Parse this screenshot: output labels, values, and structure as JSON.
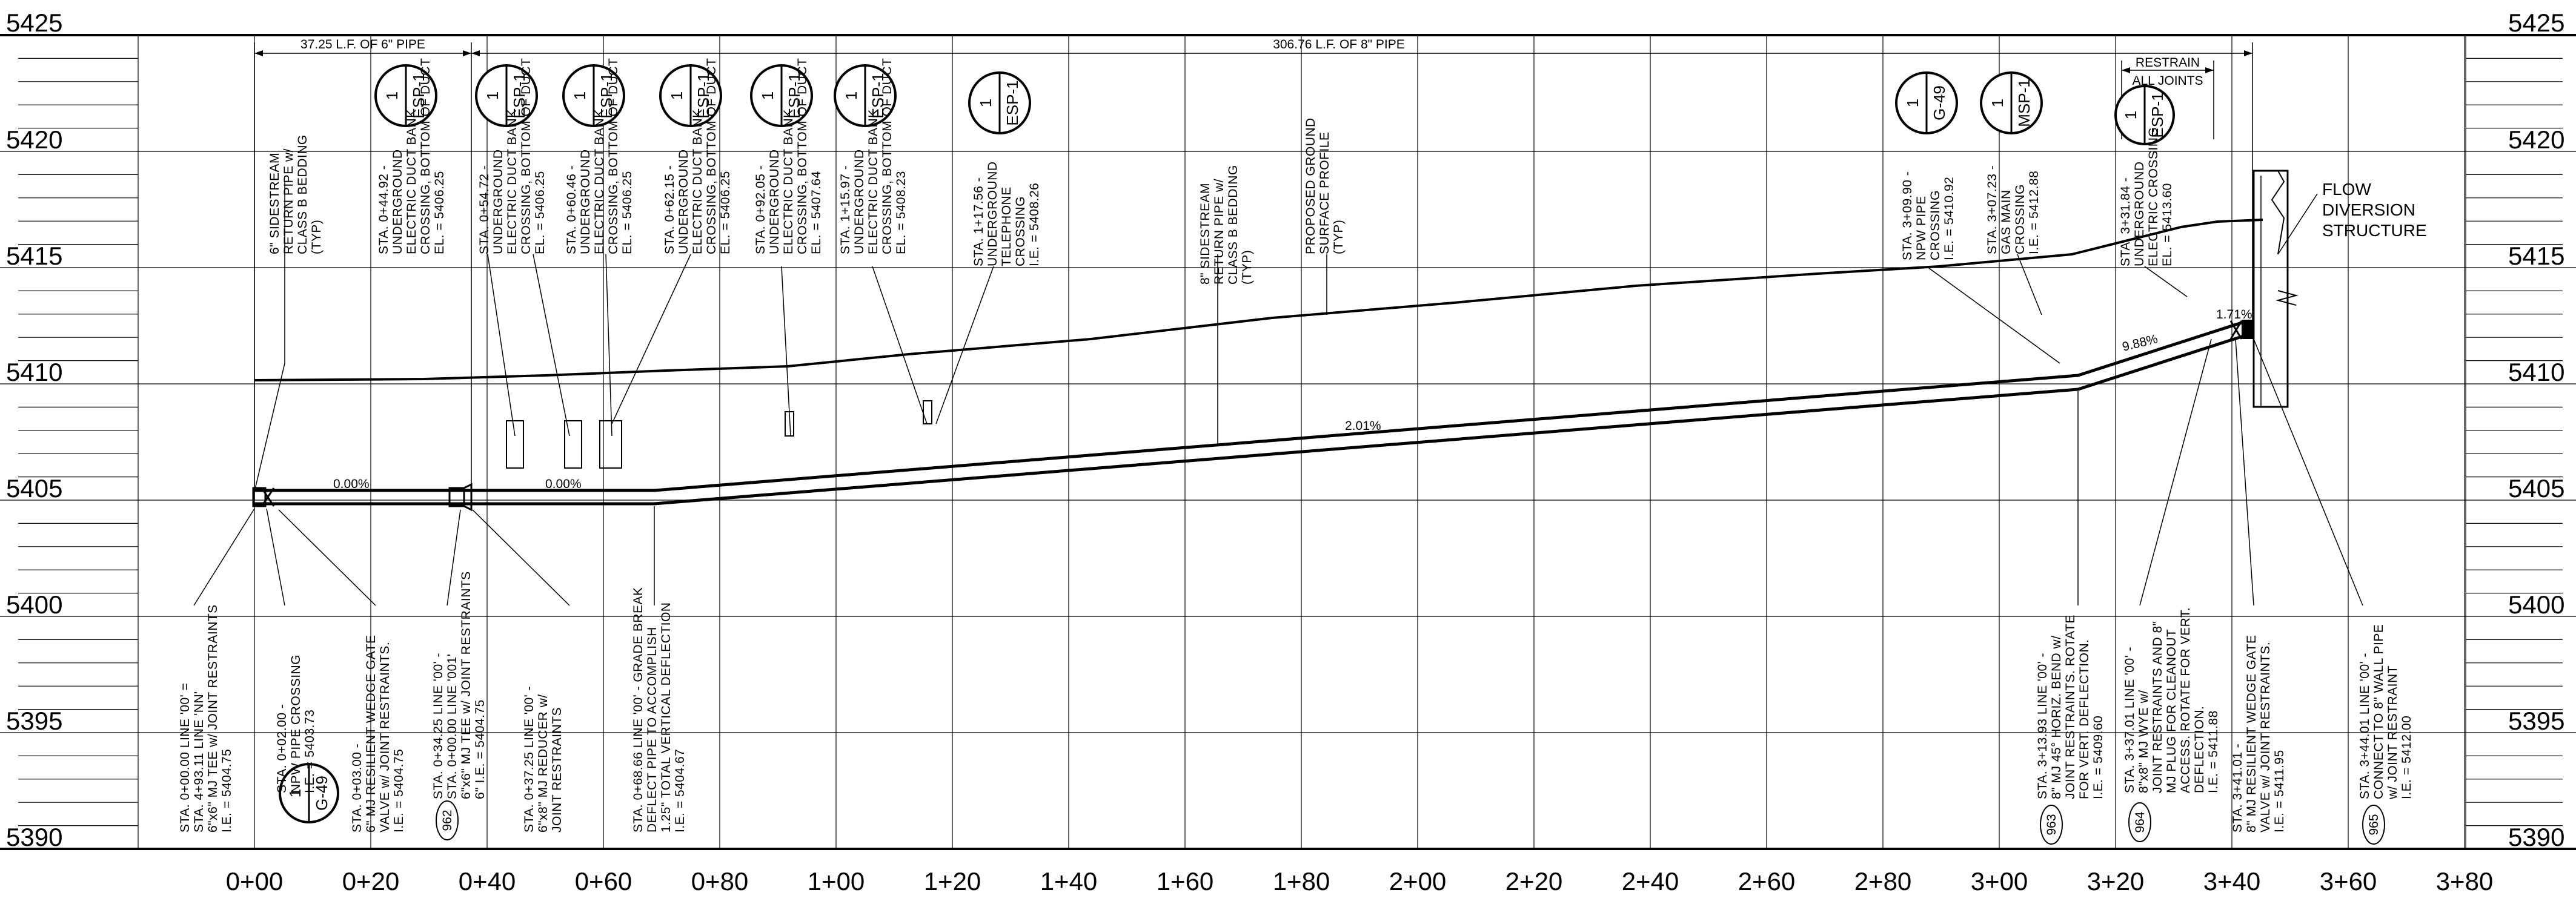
{
  "profile": {
    "elevation_labels": [
      "5425",
      "5420",
      "5415",
      "5410",
      "5405",
      "5400",
      "5395",
      "5390"
    ],
    "station_labels": [
      "0+00",
      "0+20",
      "0+40",
      "0+60",
      "0+80",
      "1+00",
      "1+20",
      "1+40",
      "1+60",
      "1+80",
      "2+00",
      "2+20",
      "2+40",
      "2+60",
      "2+80",
      "3+00",
      "3+20",
      "3+40",
      "3+60",
      "3+80"
    ]
  },
  "dimensions": {
    "pipe_6": "37.25 L.F. OF 6\" PIPE",
    "pipe_8": "306.76 L.F. OF 8\" PIPE",
    "restrain": [
      "RESTRAIN",
      "ALL JOINTS"
    ]
  },
  "slopes": {
    "s1": "0.00%",
    "s2": "0.00%",
    "s3": "2.01%",
    "s4": "9.88%",
    "s5": "1.71%"
  },
  "flow": [
    "FLOW",
    "DIVERSION",
    "STRUCTURE"
  ],
  "top_notes": [
    {
      "lines": [
        "6\" SIDESTREAM",
        "RETURN PIPE w/",
        "CLASS B BEDDING",
        "(TYP)"
      ]
    },
    {
      "lines": [
        "STA. 0+44.92 -",
        "UNDERGROUND",
        "ELECTRIC DUCT BANK",
        "CROSSING, BOTTOM OF DUCT",
        "EL. = 5406.25"
      ]
    },
    {
      "lines": [
        "STA. 0+54.72 -",
        "UNDERGROUND",
        "ELECTRIC DUCT BANK",
        "CROSSING, BOTTOM OF DUCT",
        "EL. = 5406.25"
      ]
    },
    {
      "lines": [
        "STA. 0+60.46 -",
        "UNDERGROUND",
        "ELECTRIC DUCT BANK",
        "CROSSING, BOTTOM OF DUCT",
        "EL. = 5406.25"
      ]
    },
    {
      "lines": [
        "STA. 0+62.15 -",
        "UNDERGROUND",
        "ELECTRIC DUCT BANK",
        "CROSSING, BOTTOM OF DUCT",
        "EL. = 5406.25"
      ]
    },
    {
      "lines": [
        "STA. 0+92.05 -",
        "UNDERGROUND",
        "ELECTRIC DUCT BANK",
        "CROSSING, BOTTOM OF DUCT",
        "EL. = 5407.64"
      ]
    },
    {
      "lines": [
        "STA. 1+15.97 -",
        "UNDERGROUND",
        "ELECTRIC DUCT BANK",
        "CROSSING, BOTTOM OF DUCT",
        "EL. = 5408.23"
      ]
    },
    {
      "lines": [
        "STA. 1+17.56 -",
        "UNDERGROUND",
        "TELEPHONE",
        "CROSSING",
        "I.E. = 5408.26"
      ]
    },
    {
      "lines": [
        "8\" SIDESTREAM",
        "RETURN PIPE w/",
        "CLASS B BEDDING",
        "(TYP)"
      ]
    },
    {
      "lines": [
        "PROPOSED GROUND",
        "SURFACE PROFILE",
        "(TYP)"
      ]
    },
    {
      "lines": [
        "STA. 3+09.90 -",
        "NPW PIPE",
        "CROSSING",
        "I.E. = 5410.92"
      ]
    },
    {
      "lines": [
        "STA. 3+07.23 -",
        "GAS MAIN",
        "CROSSING",
        "I.E. = 5412.88"
      ]
    },
    {
      "lines": [
        "STA. 3+31.84 -",
        "UNDERGROUND",
        "ELECTRIC CROSSING",
        "EL. = 5413.60"
      ]
    }
  ],
  "bottom_notes": [
    {
      "lines": [
        "STA. 0+00.00 LINE '00' =",
        "STA. 4+93.11 LINE 'NN'",
        "6\"x6\" MJ TEE w/ JOINT RESTRAINTS",
        "I.E. = 5404.75"
      ]
    },
    {
      "lines": [
        "STA. 0+02.00 -",
        "NPW PIPE CROSSING",
        "I.E. = 5403.73"
      ]
    },
    {
      "lines": [
        "STA. 0+03.00 -",
        "6\" MJ RESILIENT WEDGE GATE",
        "VALVE w/ JOINT RESTRAINTS.",
        "I.E. = 5404.75"
      ]
    },
    {
      "lines": [
        "STA. 0+34.25 LINE '00' -",
        "STA. 0+00.00 LINE '001'",
        "6\"x6\" MJ TEE w/ JOINT RESTRAINTS",
        "6\" I.E. = 5404.75"
      ]
    },
    {
      "lines": [
        "STA. 0+37.25 LINE '00' -",
        "6\"x8\" MJ REDUCER w/",
        "JOINT RESTRAINTS"
      ]
    },
    {
      "lines": [
        "STA. 0+68.66 LINE '00' - GRADE BREAK",
        "DEFLECT PIPE TO ACCOMPLISH",
        "1.25\" TOTAL VERTICAL DEFLECTION",
        "I.E. = 5404.67"
      ]
    },
    {
      "lines": [
        "STA. 3+13.93 LINE '00' -",
        "8\" MJ 45° HORIZ. BEND w/",
        "JOINT RESTRAINTS. ROTATE",
        "FOR VERT. DEFLECTION.",
        "I.E. = 5409.60"
      ]
    },
    {
      "lines": [
        "STA. 3+37.01 LINE '00' -",
        "8\"x8\" MJ WYE w/",
        "JOINT RESTRAINTS AND 8\"",
        "MJ PLUG FOR CLEANOUT",
        "ACCESS. ROTATE FOR VERT.",
        "DEFLECTION.",
        "I.E. = 5411.88"
      ]
    },
    {
      "lines": [
        "STA. 3+41.01 -",
        "8\" MJ RESILIENT WEDGE GATE",
        "VALVE w/ JOINT RESTRAINTS.",
        "I.E. = 5411.95"
      ]
    },
    {
      "lines": [
        "STA. 3+44.01 LINE '00' -",
        "CONNECT TO 8\" WALL PIPE",
        "w/ JOINT RESTRAINT",
        "I.E. = 5412.00"
      ]
    }
  ],
  "callouts": {
    "c962": "962",
    "c963": "963",
    "c964": "964",
    "c965": "965"
  },
  "bubbles": [
    {
      "num": "1",
      "sheet": "ESP-1"
    },
    {
      "num": "1",
      "sheet": "ESP-1"
    },
    {
      "num": "1",
      "sheet": "ESP-1"
    },
    {
      "num": "1",
      "sheet": "ESP-1"
    },
    {
      "num": "1",
      "sheet": "ESP-1"
    },
    {
      "num": "1",
      "sheet": "ESP-1"
    },
    {
      "num": "1",
      "sheet": "ESP-1"
    },
    {
      "num": "1",
      "sheet": "G-49"
    },
    {
      "num": "1",
      "sheet": "MSP-1"
    },
    {
      "num": "1",
      "sheet": "ESP-1"
    },
    {
      "num": "1",
      "sheet": "G-49"
    }
  ]
}
